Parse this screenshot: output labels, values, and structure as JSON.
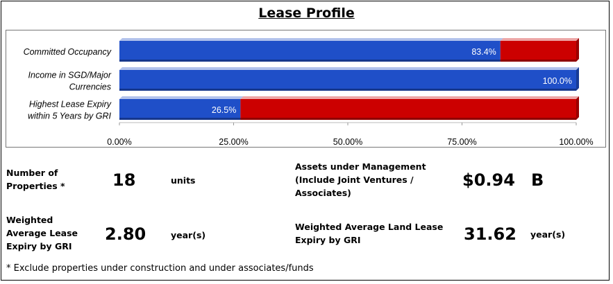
{
  "title": "Lease Profile",
  "chart_data": {
    "type": "bar",
    "orientation": "horizontal",
    "stacked": true,
    "categories": [
      "Committed Occupancy",
      "Income in SGD/Major Currencies",
      "Highest Lease Expiry within 5 Years by GRI"
    ],
    "category_lines": [
      [
        "Committed Occupancy"
      ],
      [
        "Income in SGD/Major",
        "Currencies"
      ],
      [
        "Highest Lease Expiry",
        "within 5 Years by GRI"
      ]
    ],
    "series": [
      {
        "values": [
          83.4,
          100.0,
          26.5
        ],
        "color": "#1f4fc8"
      },
      {
        "values": [
          16.6,
          0.0,
          73.5
        ],
        "color": "#cc0000"
      }
    ],
    "data_labels": [
      "83.4%",
      "100.0%",
      "26.5%"
    ],
    "xlim": [
      0,
      100
    ],
    "xticks": [
      0,
      25,
      50,
      75,
      100
    ],
    "xtick_labels": [
      "0.00%",
      "25.00%",
      "50.00%",
      "75.00%",
      "100.00%"
    ],
    "grid": false,
    "legend": "none"
  },
  "kpis": {
    "properties": {
      "label_lines": [
        "Number of",
        "Properties *"
      ],
      "value": "18",
      "unit": "units"
    },
    "wale": {
      "label_lines": [
        "Weighted",
        "Average Lease",
        "Expiry by GRI"
      ],
      "value": "2.80",
      "unit": "year(s)"
    },
    "aum": {
      "label_lines": [
        "Assets under Management",
        "(Include Joint Ventures /",
        "Associates)"
      ],
      "value": "$0.94",
      "unit": "B"
    },
    "land_lease": {
      "label_lines": [
        "Weighted Average Land Lease",
        "Expiry by GRI"
      ],
      "value": "31.62",
      "unit": "year(s)"
    }
  },
  "footnote": "* Exclude properties under construction and under associates/funds"
}
